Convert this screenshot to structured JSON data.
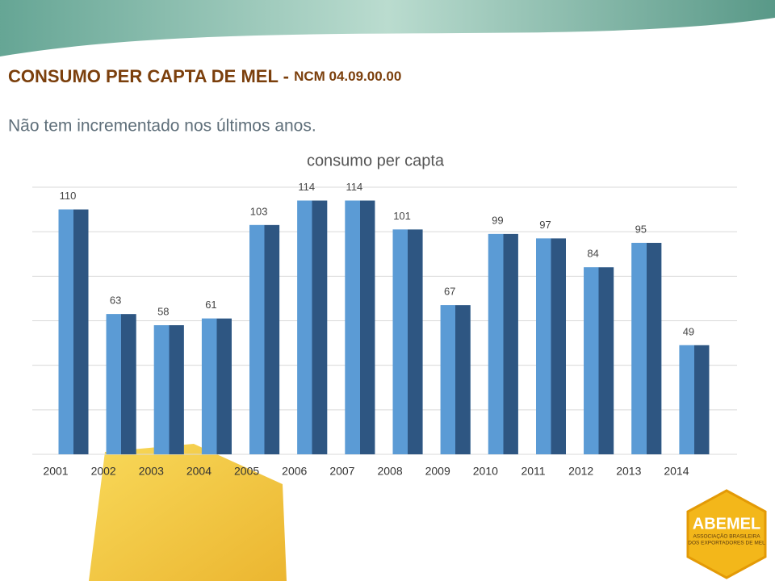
{
  "header": {
    "title": "CONSUMO PER CAPTA DE MEL  - ",
    "code": "NCM 04.09.00.00"
  },
  "subtitle": "Não tem incrementado nos últimos anos.",
  "chart_data": {
    "type": "bar",
    "title": "consumo per capta",
    "categories": [
      "2001",
      "2002",
      "2003",
      "2004",
      "2005",
      "2006",
      "2007",
      "2008",
      "2009",
      "2010",
      "2011",
      "2012",
      "2013",
      "2014"
    ],
    "values": [
      110,
      63,
      58,
      61,
      103,
      114,
      114,
      101,
      67,
      99,
      97,
      84,
      95,
      49
    ],
    "color": "#5b9bd5",
    "ylim": [
      0,
      120
    ],
    "yticks": [
      0,
      20,
      40,
      60,
      80,
      100,
      120
    ],
    "grid": true
  },
  "logo": {
    "name": "ABEMEL",
    "tagline1": "ASSOCIAÇÃO  BRASILEIRA",
    "tagline2": "DOS EXPORTADORES DE MEL"
  }
}
